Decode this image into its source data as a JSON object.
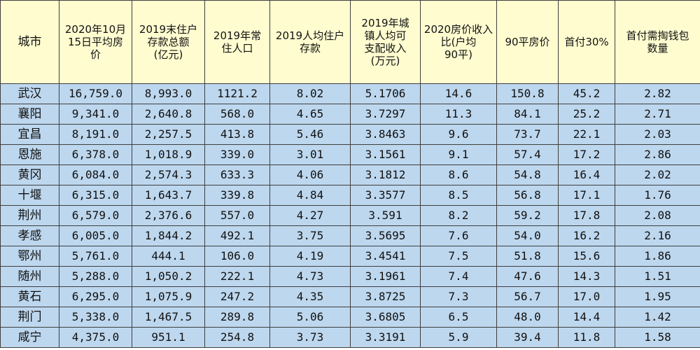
{
  "table": {
    "headers": [
      "城市",
      "2020年10月\n15日平均房\n价",
      "2019末住户\n存款总额\n(亿元)",
      "2019年常\n住人口",
      "2019人均住户\n存款",
      "2019年城\n镇人均可\n支配收入\n(万元)",
      "2020房价收入\n比(户均\n90平)",
      "90平房价",
      "首付30%",
      "首付需掏钱包\n数量"
    ],
    "rows": [
      [
        "武汉",
        "16,759.0",
        "8,993.0",
        "1121.2",
        "8.02",
        "5.1706",
        "14.6",
        "150.8",
        "45.2",
        "2.82"
      ],
      [
        "襄阳",
        "9,341.0",
        "2,640.8",
        "568.0",
        "4.65",
        "3.7297",
        "11.3",
        "84.1",
        "25.2",
        "2.71"
      ],
      [
        "宜昌",
        "8,191.0",
        "2,257.5",
        "413.8",
        "5.46",
        "3.8463",
        "9.6",
        "73.7",
        "22.1",
        "2.03"
      ],
      [
        "恩施",
        "6,378.0",
        "1,018.9",
        "339.0",
        "3.01",
        "3.1561",
        "9.1",
        "57.4",
        "17.2",
        "2.86"
      ],
      [
        "黄冈",
        "6,084.0",
        "2,574.3",
        "633.3",
        "4.06",
        "3.1812",
        "8.6",
        "54.8",
        "16.4",
        "2.02"
      ],
      [
        "十堰",
        "6,315.0",
        "1,643.7",
        "339.8",
        "4.84",
        "3.3577",
        "8.5",
        "56.8",
        "17.1",
        "1.76"
      ],
      [
        "荆州",
        "6,579.0",
        "2,376.6",
        "557.0",
        "4.27",
        "3.591",
        "8.2",
        "59.2",
        "17.8",
        "2.08"
      ],
      [
        "孝感",
        "6,005.0",
        "1,844.2",
        "492.1",
        "3.75",
        "3.5695",
        "7.6",
        "54.0",
        "16.2",
        "2.16"
      ],
      [
        "鄂州",
        "5,761.0",
        "444.1",
        "106.0",
        "4.19",
        "3.4541",
        "7.5",
        "51.8",
        "15.6",
        "1.86"
      ],
      [
        "随州",
        "5,288.0",
        "1,050.2",
        "222.1",
        "4.73",
        "3.1961",
        "7.4",
        "47.6",
        "14.3",
        "1.51"
      ],
      [
        "黄石",
        "6,295.0",
        "1,075.9",
        "247.2",
        "4.35",
        "3.8725",
        "7.3",
        "56.7",
        "17.0",
        "1.95"
      ],
      [
        "荆门",
        "5,338.0",
        "1,467.5",
        "289.8",
        "5.06",
        "3.6805",
        "6.5",
        "48.0",
        "14.4",
        "1.42"
      ],
      [
        "咸宁",
        "4,375.0",
        "951.1",
        "254.8",
        "3.73",
        "3.3191",
        "5.9",
        "39.4",
        "11.8",
        "1.58"
      ]
    ]
  },
  "colors": {
    "header_bg": "#fffdd0",
    "row_bg": "#bdd7ee",
    "border": "#3f3f3f"
  }
}
